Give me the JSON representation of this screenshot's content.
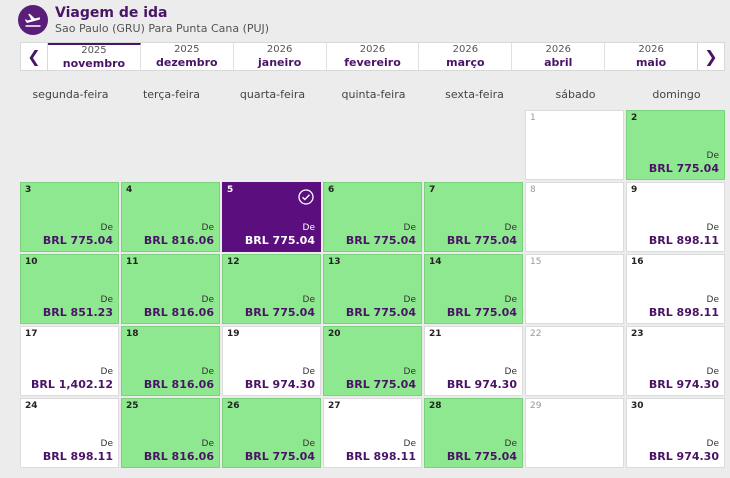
{
  "header": {
    "title": "Viagem de ida",
    "subtitle": "Sao Paulo (GRU) Para Punta Cana (PUJ)"
  },
  "months": [
    {
      "year": "2025",
      "name": "novembro",
      "active": true
    },
    {
      "year": "2025",
      "name": "dezembro",
      "active": false
    },
    {
      "year": "2026",
      "name": "janeiro",
      "active": false
    },
    {
      "year": "2026",
      "name": "fevereiro",
      "active": false
    },
    {
      "year": "2026",
      "name": "março",
      "active": false
    },
    {
      "year": "2026",
      "name": "abril",
      "active": false
    },
    {
      "year": "2026",
      "name": "maio",
      "active": false
    }
  ],
  "weekdays": [
    "segunda-feira",
    "terça-feira",
    "quarta-feira",
    "quinta-feira",
    "sexta-feira",
    "sábado",
    "domingo"
  ],
  "price_prefix": "De",
  "days": [
    {
      "day": "",
      "state": "empty"
    },
    {
      "day": "",
      "state": "empty"
    },
    {
      "day": "",
      "state": "empty"
    },
    {
      "day": "",
      "state": "empty"
    },
    {
      "day": "",
      "state": "empty"
    },
    {
      "day": "1",
      "state": "disabled"
    },
    {
      "day": "2",
      "state": "green",
      "price": "BRL 775.04"
    },
    {
      "day": "3",
      "state": "green",
      "price": "BRL 775.04"
    },
    {
      "day": "4",
      "state": "green",
      "price": "BRL 816.06"
    },
    {
      "day": "5",
      "state": "selected",
      "price": "BRL 775.04"
    },
    {
      "day": "6",
      "state": "green",
      "price": "BRL 775.04"
    },
    {
      "day": "7",
      "state": "green",
      "price": "BRL 775.04"
    },
    {
      "day": "8",
      "state": "disabled"
    },
    {
      "day": "9",
      "state": "white",
      "price": "BRL 898.11"
    },
    {
      "day": "10",
      "state": "green",
      "price": "BRL 851.23"
    },
    {
      "day": "11",
      "state": "green",
      "price": "BRL 816.06"
    },
    {
      "day": "12",
      "state": "green",
      "price": "BRL 775.04"
    },
    {
      "day": "13",
      "state": "green",
      "price": "BRL 775.04"
    },
    {
      "day": "14",
      "state": "green",
      "price": "BRL 775.04"
    },
    {
      "day": "15",
      "state": "disabled"
    },
    {
      "day": "16",
      "state": "white",
      "price": "BRL 898.11"
    },
    {
      "day": "17",
      "state": "white",
      "price": "BRL 1,402.12"
    },
    {
      "day": "18",
      "state": "green",
      "price": "BRL 816.06"
    },
    {
      "day": "19",
      "state": "white",
      "price": "BRL 974.30"
    },
    {
      "day": "20",
      "state": "green",
      "price": "BRL 775.04"
    },
    {
      "day": "21",
      "state": "white",
      "price": "BRL 974.30"
    },
    {
      "day": "22",
      "state": "disabled"
    },
    {
      "day": "23",
      "state": "white",
      "price": "BRL 974.30"
    },
    {
      "day": "24",
      "state": "white",
      "price": "BRL 898.11"
    },
    {
      "day": "25",
      "state": "green",
      "price": "BRL 816.06"
    },
    {
      "day": "26",
      "state": "green",
      "price": "BRL 775.04"
    },
    {
      "day": "27",
      "state": "white",
      "price": "BRL 898.11"
    },
    {
      "day": "28",
      "state": "green",
      "price": "BRL 775.04"
    },
    {
      "day": "29",
      "state": "disabled"
    },
    {
      "day": "30",
      "state": "white",
      "price": "BRL 974.30"
    }
  ],
  "colors": {
    "brand": "#4a1466",
    "selected": "#5b0f7e",
    "available_low": "#8de88f"
  },
  "icons": {
    "header": "plane-departure-icon",
    "prev": "chevron-left-icon",
    "next": "chevron-right-icon",
    "selected": "check-circle-icon"
  }
}
